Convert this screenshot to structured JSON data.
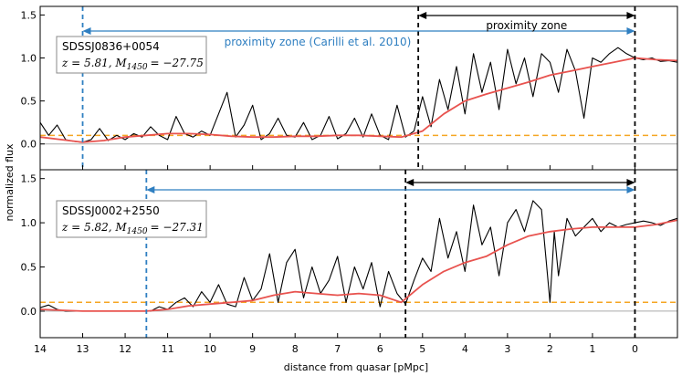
{
  "chart_data": [
    {
      "type": "line",
      "object": "SDSSJ0836+0054",
      "redshift_label": "z = 5.81, M",
      "mag_sub": "1450",
      "mag_value": "= −27.75",
      "xlabel": "distance from quasar [pMpc]",
      "ylabel": "normalized flux",
      "xlim": [
        14,
        -1.0
      ],
      "ylim": [
        -0.3,
        1.6
      ],
      "x_ticks": [
        14,
        13,
        12,
        11,
        10,
        9,
        8,
        7,
        6,
        5,
        4,
        3,
        2,
        1,
        0
      ],
      "y_ticks": [
        0.0,
        0.5,
        1.0,
        1.5
      ],
      "threshold": 0.1,
      "quasar_position": 0,
      "proximity_zone_edge": 5.1,
      "proximity_zone_label": "proximity zone",
      "literature_zone_edge": 13.0,
      "literature_zone_label": "proximity zone (Carilli et al. 2010)",
      "series": [
        {
          "color": "#000000",
          "x": [
            14.0,
            13.8,
            13.6,
            13.4,
            13.2,
            13.0,
            12.8,
            12.6,
            12.4,
            12.2,
            12.0,
            11.8,
            11.6,
            11.4,
            11.2,
            11.0,
            10.8,
            10.6,
            10.4,
            10.2,
            10.0,
            9.8,
            9.6,
            9.4,
            9.2,
            9.0,
            8.8,
            8.6,
            8.4,
            8.2,
            8.0,
            7.8,
            7.6,
            7.4,
            7.2,
            7.0,
            6.8,
            6.6,
            6.4,
            6.2,
            6.0,
            5.8,
            5.6,
            5.4,
            5.2,
            5.0,
            4.8,
            4.6,
            4.4,
            4.2,
            4.0,
            3.8,
            3.6,
            3.4,
            3.2,
            3.0,
            2.8,
            2.6,
            2.4,
            2.2,
            2.0,
            1.8,
            1.6,
            1.4,
            1.2,
            1.0,
            0.8,
            0.6,
            0.4,
            0.2,
            0.0,
            -0.2,
            -0.4,
            -0.6,
            -0.8,
            -1.0
          ],
          "values": [
            0.25,
            0.1,
            0.22,
            0.05,
            0.03,
            0.02,
            0.05,
            0.18,
            0.04,
            0.1,
            0.05,
            0.12,
            0.08,
            0.2,
            0.1,
            0.05,
            0.32,
            0.12,
            0.08,
            0.15,
            0.1,
            0.35,
            0.6,
            0.08,
            0.22,
            0.45,
            0.05,
            0.12,
            0.3,
            0.1,
            0.08,
            0.25,
            0.05,
            0.1,
            0.32,
            0.06,
            0.12,
            0.3,
            0.08,
            0.35,
            0.1,
            0.05,
            0.45,
            0.08,
            0.15,
            0.55,
            0.2,
            0.75,
            0.4,
            0.9,
            0.35,
            1.05,
            0.6,
            0.95,
            0.4,
            1.1,
            0.7,
            1.0,
            0.55,
            1.05,
            0.95,
            0.6,
            1.1,
            0.85,
            0.3,
            1.0,
            0.95,
            1.05,
            1.12,
            1.05,
            1.0,
            0.98,
            1.0,
            0.96,
            0.97,
            0.95
          ]
        },
        {
          "color": "#e8534f",
          "x": [
            14.0,
            13.5,
            13.0,
            12.5,
            12.0,
            11.5,
            11.0,
            10.5,
            10.0,
            9.5,
            9.0,
            8.5,
            8.0,
            7.5,
            7.0,
            6.5,
            6.0,
            5.5,
            5.0,
            4.5,
            4.0,
            3.5,
            3.0,
            2.5,
            2.0,
            1.5,
            1.0,
            0.5,
            0.0,
            -0.5,
            -1.0
          ],
          "values": [
            0.08,
            0.05,
            0.02,
            0.04,
            0.08,
            0.1,
            0.12,
            0.12,
            0.11,
            0.09,
            0.08,
            0.08,
            0.09,
            0.09,
            0.1,
            0.1,
            0.09,
            0.08,
            0.15,
            0.35,
            0.5,
            0.58,
            0.65,
            0.72,
            0.8,
            0.85,
            0.9,
            0.95,
            1.0,
            0.98,
            0.97
          ]
        },
        {
          "color": "#aaaaaa",
          "x": [
            14.0,
            10.0,
            6.0,
            2.0,
            -1.0
          ],
          "values": [
            0.0,
            0.0,
            0.0,
            0.0,
            0.0
          ]
        }
      ]
    },
    {
      "type": "line",
      "object": "SDSSJ0002+2550",
      "redshift_label": "z = 5.82, M",
      "mag_sub": "1450",
      "mag_value": "= −27.31",
      "xlabel": "distance from quasar [pMpc]",
      "ylabel": "normalized flux",
      "xlim": [
        14,
        -1.0
      ],
      "ylim": [
        -0.3,
        1.6
      ],
      "x_ticks": [
        14,
        13,
        12,
        11,
        10,
        9,
        8,
        7,
        6,
        5,
        4,
        3,
        2,
        1,
        0
      ],
      "y_ticks": [
        0.0,
        0.5,
        1.0,
        1.5
      ],
      "threshold": 0.1,
      "quasar_position": 0,
      "proximity_zone_edge": 5.4,
      "literature_zone_edge": 11.5,
      "series": [
        {
          "color": "#000000",
          "x": [
            14.0,
            13.8,
            13.6,
            13.4,
            13.2,
            13.0,
            12.8,
            12.6,
            12.4,
            12.2,
            12.0,
            11.8,
            11.6,
            11.4,
            11.2,
            11.0,
            10.8,
            10.6,
            10.4,
            10.2,
            10.0,
            9.8,
            9.6,
            9.4,
            9.2,
            9.0,
            8.8,
            8.6,
            8.4,
            8.2,
            8.0,
            7.8,
            7.6,
            7.4,
            7.2,
            7.0,
            6.8,
            6.6,
            6.4,
            6.2,
            6.0,
            5.8,
            5.6,
            5.4,
            5.2,
            5.0,
            4.8,
            4.6,
            4.4,
            4.2,
            4.0,
            3.8,
            3.6,
            3.4,
            3.2,
            3.0,
            2.8,
            2.6,
            2.4,
            2.2,
            2.0,
            1.9,
            1.8,
            1.6,
            1.4,
            1.2,
            1.0,
            0.8,
            0.6,
            0.4,
            0.2,
            0.0,
            -0.2,
            -0.4,
            -0.6,
            -0.8,
            -1.0
          ],
          "values": [
            0.04,
            0.07,
            0.02,
            0.0,
            0.0,
            0.0,
            0.0,
            0.0,
            0.0,
            0.0,
            0.0,
            0.0,
            0.0,
            0.0,
            0.05,
            0.02,
            0.1,
            0.15,
            0.05,
            0.22,
            0.1,
            0.3,
            0.08,
            0.05,
            0.38,
            0.12,
            0.25,
            0.65,
            0.1,
            0.55,
            0.7,
            0.15,
            0.5,
            0.2,
            0.35,
            0.62,
            0.1,
            0.5,
            0.25,
            0.55,
            0.05,
            0.45,
            0.2,
            0.08,
            0.35,
            0.6,
            0.45,
            1.05,
            0.6,
            0.9,
            0.45,
            1.2,
            0.75,
            0.95,
            0.4,
            1.0,
            1.15,
            0.9,
            1.25,
            1.15,
            0.1,
            0.9,
            0.4,
            1.05,
            0.85,
            0.95,
            1.05,
            0.9,
            1.0,
            0.95,
            0.98,
            1.0,
            1.02,
            1.0,
            0.97,
            1.02,
            1.05
          ]
        },
        {
          "color": "#e8534f",
          "x": [
            14.0,
            13.5,
            13.0,
            12.5,
            12.0,
            11.5,
            11.0,
            10.5,
            10.0,
            9.5,
            9.0,
            8.5,
            8.0,
            7.5,
            7.0,
            6.5,
            6.0,
            5.5,
            5.0,
            4.5,
            4.0,
            3.5,
            3.0,
            2.5,
            2.0,
            1.5,
            1.0,
            0.5,
            0.0,
            -0.5,
            -1.0
          ],
          "values": [
            0.02,
            0.01,
            0.0,
            0.0,
            0.0,
            0.0,
            0.02,
            0.06,
            0.08,
            0.1,
            0.12,
            0.18,
            0.22,
            0.2,
            0.18,
            0.2,
            0.18,
            0.1,
            0.3,
            0.45,
            0.55,
            0.62,
            0.75,
            0.85,
            0.9,
            0.93,
            0.95,
            0.95,
            0.95,
            0.98,
            1.03
          ]
        },
        {
          "color": "#aaaaaa",
          "x": [
            14.0,
            10.0,
            6.0,
            2.0,
            -1.0
          ],
          "values": [
            0.0,
            0.0,
            0.0,
            0.0,
            0.0
          ]
        }
      ]
    }
  ],
  "colors": {
    "flux": "#000000",
    "smoothed": "#e8534f",
    "noise": "#aaaaaa",
    "threshold": "#f5a623",
    "literature_zone": "#2f7fc1",
    "measured_zone": "#000000"
  }
}
